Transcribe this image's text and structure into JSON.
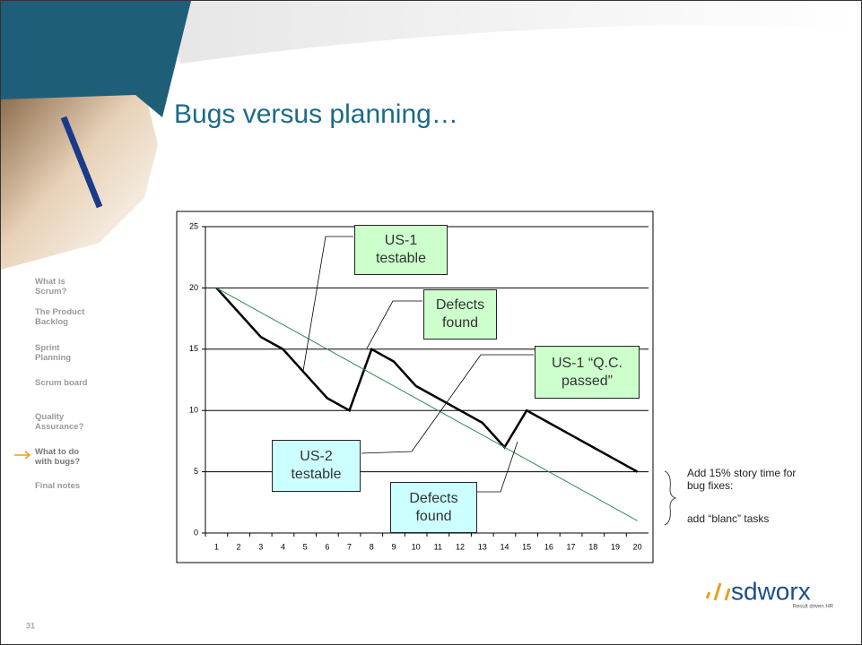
{
  "slide": {
    "title": "Bugs versus planning…",
    "nav": [
      {
        "label": "What is Scrum?"
      },
      {
        "label": "The Product Backlog"
      },
      {
        "label": "Sprint Planning"
      },
      {
        "label": "Scrum board"
      },
      {
        "label": "Quality Assurance?"
      },
      {
        "label": "What to do with bugs?",
        "active": true
      },
      {
        "label": "Final notes"
      }
    ],
    "note": [
      "Add 15% story time for bug fixes:",
      "add “blanc” tasks"
    ],
    "page_number": "31",
    "logo": {
      "name": "sdworx",
      "tagline": "Result driven HR"
    }
  },
  "chart_data": {
    "type": "line",
    "categories": [
      "1",
      "2",
      "3",
      "4",
      "5",
      "6",
      "7",
      "8",
      "9",
      "10",
      "11",
      "12",
      "13",
      "14",
      "15",
      "16",
      "17",
      "18",
      "19",
      "20"
    ],
    "ylim": [
      0,
      25
    ],
    "yticks": [
      0,
      5,
      10,
      15,
      20,
      25
    ],
    "grid": true,
    "series": [
      {
        "color": "#000000",
        "values": [
          20,
          18,
          16,
          15,
          13,
          11,
          10,
          15,
          14,
          12,
          11,
          10,
          9,
          7,
          10,
          9,
          8,
          7,
          6,
          5
        ]
      },
      {
        "color": "#2e8b57",
        "values": [
          20,
          19,
          18,
          17,
          16,
          15,
          14,
          13,
          12,
          11,
          10,
          9,
          8,
          7,
          6,
          5,
          4,
          3,
          2,
          1
        ]
      }
    ],
    "annotations": [
      {
        "text": "US-1 testable",
        "color": "#ccffcc"
      },
      {
        "text": "Defects found",
        "color": "#ccffcc"
      },
      {
        "text": "US-1 “Q.C. passed”",
        "color": "#ccffcc"
      },
      {
        "text": "US-2 testable",
        "color": "#ccffff"
      },
      {
        "text": "Defects found",
        "color": "#ccffff"
      }
    ]
  }
}
